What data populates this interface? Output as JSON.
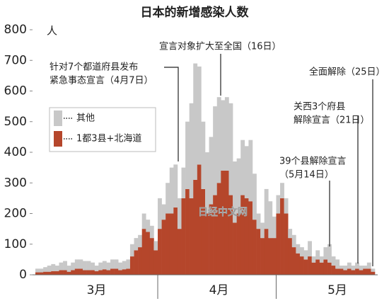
{
  "chart_data": {
    "type": "stacked_bar",
    "title": "日本的新增感染人数",
    "y_unit": "人",
    "categories": [
      null,
      null,
      null,
      null,
      null,
      null,
      null,
      null,
      null,
      null,
      null,
      null,
      null,
      null,
      null,
      "3月",
      null,
      null,
      null,
      null,
      null,
      null,
      null,
      null,
      null,
      null,
      null,
      null,
      null,
      null,
      null,
      null,
      null,
      null,
      null,
      null,
      null,
      null,
      null,
      null,
      null,
      null,
      null,
      null,
      null,
      null,
      "4月",
      null,
      null,
      null,
      null,
      null,
      null,
      null,
      null,
      null,
      null,
      null,
      null,
      null,
      null,
      null,
      null,
      null,
      null,
      null,
      null,
      null,
      null,
      null,
      null,
      null,
      null,
      null,
      null,
      null,
      "5月",
      null,
      null,
      null,
      null,
      null,
      null,
      null,
      null,
      null
    ],
    "series": [
      {
        "name": "1都3县+北海道",
        "color": "#b5462b",
        "values": [
          8,
          8,
          10,
          10,
          12,
          12,
          15,
          15,
          10,
          15,
          20,
          20,
          15,
          15,
          15,
          12,
          15,
          18,
          15,
          20,
          20,
          15,
          18,
          20,
          60,
          80,
          90,
          150,
          140,
          120,
          80,
          150,
          180,
          200,
          200,
          220,
          150,
          250,
          280,
          250,
          310,
          360,
          280,
          200,
          230,
          260,
          300,
          340,
          340,
          260,
          170,
          200,
          260,
          250,
          240,
          180,
          150,
          120,
          150,
          120,
          120,
          200,
          250,
          200,
          120,
          90,
          70,
          60,
          50,
          60,
          40,
          50,
          40,
          50,
          40,
          30,
          20,
          20,
          15,
          20,
          15,
          20,
          15,
          20,
          20,
          10
        ]
      },
      {
        "name": "其他",
        "color": "#c8c8c8",
        "values": [
          12,
          12,
          15,
          20,
          23,
          18,
          25,
          30,
          20,
          25,
          30,
          30,
          30,
          30,
          25,
          18,
          25,
          27,
          25,
          30,
          30,
          25,
          27,
          30,
          40,
          40,
          40,
          50,
          40,
          40,
          30,
          100,
          50,
          100,
          150,
          140,
          100,
          100,
          220,
          310,
          380,
          320,
          220,
          200,
          220,
          290,
          280,
          230,
          240,
          300,
          200,
          180,
          180,
          170,
          200,
          150,
          50,
          50,
          130,
          120,
          70,
          60,
          50,
          50,
          30,
          40,
          30,
          30,
          30,
          50,
          20,
          30,
          20,
          40,
          60,
          30,
          30,
          10,
          15,
          20,
          15,
          20,
          15,
          10,
          20,
          10
        ]
      }
    ],
    "ylim": [
      0,
      800
    ],
    "yticks": [
      0,
      100,
      200,
      300,
      400,
      500,
      600,
      700,
      800
    ],
    "annotations": [
      {
        "lines": [
          "针对7个都道府县发布",
          "紧急事态宣言（4月7日）"
        ]
      },
      {
        "lines": [
          "宣言对象扩大至全国（16日）"
        ]
      },
      {
        "lines": [
          "39个县解除宣言",
          "（5月14日）"
        ]
      },
      {
        "lines": [
          "关西3个府县",
          "解除宣言（21日）"
        ]
      },
      {
        "lines": [
          "全面解除（25日）"
        ]
      }
    ],
    "watermark": "日经中文网"
  }
}
